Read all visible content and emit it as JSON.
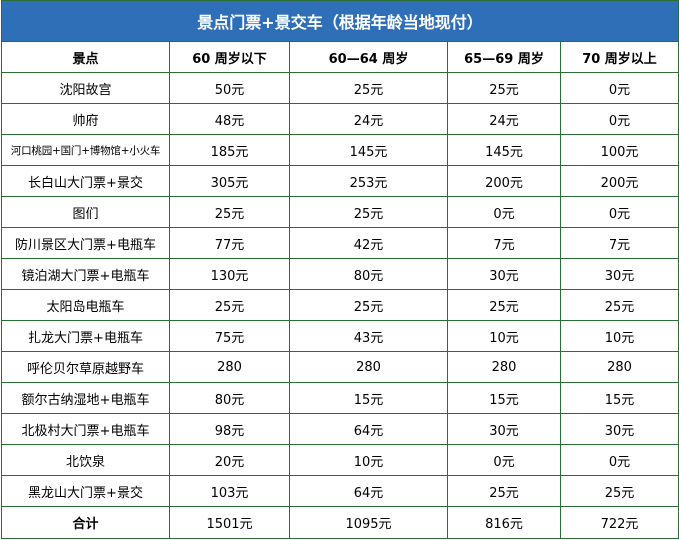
{
  "title": "景点门票+景交车（根据年龄当地现付）",
  "headers": [
    "景点",
    "60 周岁以下",
    "60—64 周岁",
    "65—69 周岁",
    "70 周岁以上"
  ],
  "rows": [
    {
      "name": "沈阳故宫",
      "c1": "50元",
      "c2": "25元",
      "c3": "25元",
      "c4": "0元"
    },
    {
      "name": "帅府",
      "c1": "48元",
      "c2": "24元",
      "c3": "24元",
      "c4": "0元"
    },
    {
      "name": "河口桃园+国门+博物馆+小火车",
      "c1": "185元",
      "c2": "145元",
      "c3": "145元",
      "c4": "100元"
    },
    {
      "name": "长白山大门票+景交",
      "c1": "305元",
      "c2": "253元",
      "c3": "200元",
      "c4": "200元"
    },
    {
      "name": "图们",
      "c1": "25元",
      "c2": "25元",
      "c3": "0元",
      "c4": "0元"
    },
    {
      "name": "防川景区大门票+电瓶车",
      "c1": "77元",
      "c2": "42元",
      "c3": "7元",
      "c4": "7元"
    },
    {
      "name": "镜泊湖大门票+电瓶车",
      "c1": "130元",
      "c2": "80元",
      "c3": "30元",
      "c4": "30元"
    },
    {
      "name": "太阳岛电瓶车",
      "c1": "25元",
      "c2": "25元",
      "c3": "25元",
      "c4": "25元"
    },
    {
      "name": "扎龙大门票+电瓶车",
      "c1": "75元",
      "c2": "43元",
      "c3": "10元",
      "c4": "10元"
    },
    {
      "name": "呼伦贝尔草原越野车",
      "c1": "280",
      "c2": "280",
      "c3": "280",
      "c4": "280"
    },
    {
      "name": "额尔古纳湿地+电瓶车",
      "c1": "80元",
      "c2": "15元",
      "c3": "15元",
      "c4": "15元"
    },
    {
      "name": "北极村大门票+电瓶车",
      "c1": "98元",
      "c2": "64元",
      "c3": "30元",
      "c4": "30元"
    },
    {
      "name": "北饮泉",
      "c1": "20元",
      "c2": "10元",
      "c3": "0元",
      "c4": "0元"
    },
    {
      "name": "黑龙山大门票+景交",
      "c1": "103元",
      "c2": "64元",
      "c3": "25元",
      "c4": "25元"
    }
  ],
  "total": {
    "name": "合计",
    "c1": "1501元",
    "c2": "1095元",
    "c3": "816元",
    "c4": "722元"
  }
}
